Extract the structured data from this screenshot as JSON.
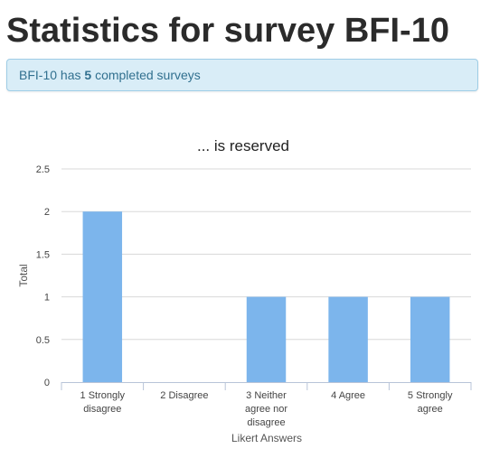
{
  "page": {
    "title": "Statistics for survey BFI-10"
  },
  "alert": {
    "prefix": "BFI-10 has",
    "count": "5",
    "suffix": "completed surveys"
  },
  "chart_data": {
    "type": "bar",
    "title": "... is reserved",
    "xlabel": "Likert Answers",
    "ylabel": "Total",
    "categories": [
      [
        "1 Strongly",
        "disagree"
      ],
      [
        "2 Disagree"
      ],
      [
        "3 Neither",
        "agree nor",
        "disagree"
      ],
      [
        "4 Agree"
      ],
      [
        "5 Strongly",
        "agree"
      ]
    ],
    "values": [
      2,
      0,
      1,
      1,
      1
    ],
    "ylim": [
      0,
      2.5
    ],
    "yticks": [
      0,
      0.5,
      1,
      1.5,
      2,
      2.5
    ],
    "ytick_labels": [
      "0",
      "0.5",
      "1",
      "1.5",
      "2",
      "2.5"
    ],
    "grid": true,
    "bar_color": "#7cb5ec",
    "gridline_color": "#d8d8d8"
  }
}
